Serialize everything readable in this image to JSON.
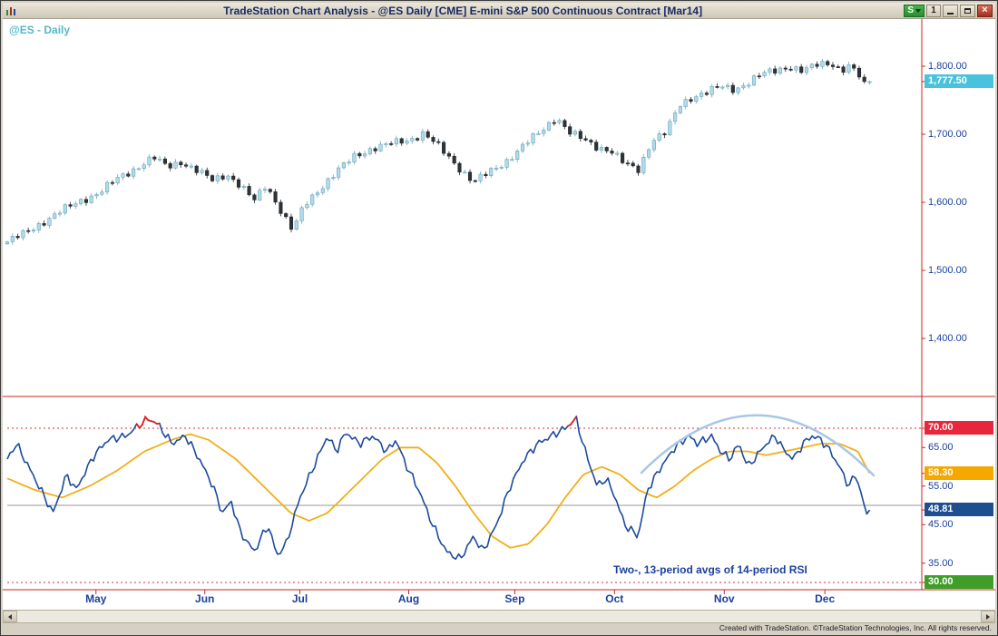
{
  "window": {
    "title": "TradeStation Chart Analysis - @ES Daily [CME] E-mini S&P 500 Continuous Contract [Mar14]",
    "toolbar_buttons": {
      "status": "S",
      "workspace": "1"
    }
  },
  "icons": {
    "app": "chart-icon",
    "status_dropdown": "chevron-down-icon",
    "minimize": "minimize-icon",
    "restore": "restore-icon",
    "close": "close-icon",
    "scroll_left": "arrow-left-icon",
    "scroll_right": "arrow-right-icon"
  },
  "chart": {
    "symbol_label": "@ES - Daily",
    "annotation": "Two-, 13-period avgs of 14-period RSI"
  },
  "statusbar": {
    "credit": "Created with TradeStation. ©TradeStation Technologies, Inc. All rights reserved."
  },
  "colors": {
    "candle_up": "#aedcec",
    "candle_up_stroke": "#5d98ac",
    "candle_down": "#2e3338",
    "candle_down_stroke": "#1e2226",
    "wick_up": "#7fb0c0",
    "wick_down": "#3a4046",
    "rsi_fast": "#1b4a9e",
    "rsi_slow": "#f2ae18",
    "rsi_overbought_segment": "#e02020",
    "axis_text": "#1a3f9e",
    "axis_line": "#cc2222",
    "last_price_badge_bg": "#49c2dd",
    "badge_70": "#e8273c",
    "badge_58": "#f5a800",
    "badge_48": "#1d4e8f",
    "badge_30": "#3f9e28",
    "midline": "#999999",
    "arc": "#a8c6e8",
    "annotation_text": "#1a3f9e",
    "symbol_label": "#58b6c8"
  },
  "price_axis": {
    "ticks": [
      {
        "text": "1,800.00",
        "value": 1800
      },
      {
        "text": "1,700.00",
        "value": 1700
      },
      {
        "text": "1,600.00",
        "value": 1600
      },
      {
        "text": "1,500.00",
        "value": 1500
      },
      {
        "text": "1,400.00",
        "value": 1400
      }
    ],
    "last_price": {
      "text": "1,777.50",
      "value": 1777.5
    }
  },
  "rsi_axis": {
    "ticks": [
      {
        "text": "70.00",
        "value": 70,
        "badge": "badge_70"
      },
      {
        "text": "65.00",
        "value": 65
      },
      {
        "text": "58.30",
        "value": 58.3,
        "badge": "badge_58"
      },
      {
        "text": "55.00",
        "value": 55
      },
      {
        "text": "48.81",
        "value": 48.81,
        "badge": "badge_48"
      },
      {
        "text": "45.00",
        "value": 45
      },
      {
        "text": "35.00",
        "value": 35
      },
      {
        "text": "30.00",
        "value": 30,
        "badge": "badge_30"
      }
    ]
  },
  "x_axis": {
    "months": [
      {
        "label": "May",
        "f": 0.097
      },
      {
        "label": "Jun",
        "f": 0.216
      },
      {
        "label": "Jul",
        "f": 0.32
      },
      {
        "label": "Aug",
        "f": 0.439
      },
      {
        "label": "Sep",
        "f": 0.555
      },
      {
        "label": "Oct",
        "f": 0.664
      },
      {
        "label": "Nov",
        "f": 0.784
      },
      {
        "label": "Dec",
        "f": 0.894
      }
    ]
  },
  "chart_data": {
    "type": "candlestick",
    "title": "@ES Daily [CME] E-mini S&P 500 Continuous Contract [Mar14]",
    "price_pane": {
      "ylim": [
        1315,
        1869
      ],
      "axis_ticks": [
        1800,
        1700,
        1600,
        1500,
        1400
      ],
      "last_close": 1777.5,
      "bar_count": 165,
      "close_anchors": [
        [
          0.0,
          1542
        ],
        [
          0.02,
          1555
        ],
        [
          0.04,
          1572
        ],
        [
          0.06,
          1588
        ],
        [
          0.08,
          1602
        ],
        [
          0.1,
          1614
        ],
        [
          0.12,
          1634
        ],
        [
          0.14,
          1650
        ],
        [
          0.16,
          1666
        ],
        [
          0.175,
          1652
        ],
        [
          0.19,
          1660
        ],
        [
          0.205,
          1648
        ],
        [
          0.225,
          1632
        ],
        [
          0.24,
          1642
        ],
        [
          0.255,
          1624
        ],
        [
          0.27,
          1602
        ],
        [
          0.283,
          1626
        ],
        [
          0.3,
          1586
        ],
        [
          0.312,
          1558
        ],
        [
          0.325,
          1596
        ],
        [
          0.34,
          1618
        ],
        [
          0.36,
          1645
        ],
        [
          0.38,
          1668
        ],
        [
          0.4,
          1680
        ],
        [
          0.42,
          1686
        ],
        [
          0.44,
          1692
        ],
        [
          0.455,
          1702
        ],
        [
          0.47,
          1684
        ],
        [
          0.49,
          1656
        ],
        [
          0.51,
          1630
        ],
        [
          0.525,
          1642
        ],
        [
          0.545,
          1660
        ],
        [
          0.565,
          1684
        ],
        [
          0.585,
          1706
        ],
        [
          0.6,
          1726
        ],
        [
          0.615,
          1702
        ],
        [
          0.63,
          1692
        ],
        [
          0.645,
          1682
        ],
        [
          0.66,
          1676
        ],
        [
          0.675,
          1656
        ],
        [
          0.69,
          1648
        ],
        [
          0.705,
          1692
        ],
        [
          0.72,
          1702
        ],
        [
          0.735,
          1742
        ],
        [
          0.75,
          1756
        ],
        [
          0.765,
          1762
        ],
        [
          0.78,
          1770
        ],
        [
          0.795,
          1766
        ],
        [
          0.81,
          1776
        ],
        [
          0.825,
          1788
        ],
        [
          0.84,
          1794
        ],
        [
          0.855,
          1800
        ],
        [
          0.87,
          1792
        ],
        [
          0.885,
          1802
        ],
        [
          0.9,
          1806
        ],
        [
          0.912,
          1794
        ],
        [
          0.922,
          1800
        ],
        [
          0.932,
          1784
        ],
        [
          0.94,
          1766
        ],
        [
          0.943,
          1777.5
        ]
      ]
    },
    "rsi_pane": {
      "indicator": "Two moving averages (2-period and 13-period) of 14-period RSI",
      "ylim": [
        28,
        77
      ],
      "axis_ticks": [
        70,
        65,
        58.3,
        55,
        48.81,
        45,
        35,
        30
      ],
      "levels": {
        "overbought": 70,
        "midline": 50,
        "oversold": 30
      },
      "lines": [
        {
          "name": "2-period avg of 14-period RSI",
          "color_key": "rsi_fast",
          "last_value": 48.81,
          "anchors": [
            [
              0.0,
              62
            ],
            [
              0.01,
              66
            ],
            [
              0.03,
              57
            ],
            [
              0.05,
              48
            ],
            [
              0.065,
              58
            ],
            [
              0.075,
              54
            ],
            [
              0.095,
              63
            ],
            [
              0.11,
              67
            ],
            [
              0.13,
              68
            ],
            [
              0.145,
              71
            ],
            [
              0.155,
              72.5
            ],
            [
              0.165,
              71
            ],
            [
              0.18,
              66
            ],
            [
              0.195,
              68
            ],
            [
              0.21,
              62
            ],
            [
              0.225,
              55
            ],
            [
              0.235,
              48
            ],
            [
              0.245,
              51
            ],
            [
              0.255,
              43
            ],
            [
              0.27,
              38
            ],
            [
              0.285,
              45
            ],
            [
              0.295,
              37
            ],
            [
              0.305,
              40
            ],
            [
              0.32,
              52
            ],
            [
              0.335,
              60
            ],
            [
              0.35,
              68
            ],
            [
              0.36,
              64
            ],
            [
              0.37,
              69
            ],
            [
              0.385,
              66
            ],
            [
              0.4,
              68
            ],
            [
              0.415,
              64
            ],
            [
              0.425,
              67
            ],
            [
              0.435,
              61
            ],
            [
              0.45,
              54
            ],
            [
              0.465,
              45
            ],
            [
              0.48,
              38
            ],
            [
              0.495,
              36
            ],
            [
              0.51,
              42
            ],
            [
              0.52,
              38
            ],
            [
              0.535,
              45
            ],
            [
              0.55,
              55
            ],
            [
              0.565,
              62
            ],
            [
              0.58,
              66
            ],
            [
              0.595,
              68
            ],
            [
              0.61,
              70
            ],
            [
              0.622,
              72.5
            ],
            [
              0.632,
              64
            ],
            [
              0.645,
              55
            ],
            [
              0.655,
              57
            ],
            [
              0.665,
              52
            ],
            [
              0.675,
              45
            ],
            [
              0.69,
              42
            ],
            [
              0.7,
              54
            ],
            [
              0.715,
              60
            ],
            [
              0.73,
              65
            ],
            [
              0.745,
              68
            ],
            [
              0.755,
              66
            ],
            [
              0.77,
              68
            ],
            [
              0.78,
              64
            ],
            [
              0.79,
              62
            ],
            [
              0.8,
              66
            ],
            [
              0.81,
              60
            ],
            [
              0.82,
              63
            ],
            [
              0.83,
              66
            ],
            [
              0.84,
              68
            ],
            [
              0.85,
              64
            ],
            [
              0.86,
              62
            ],
            [
              0.87,
              66
            ],
            [
              0.88,
              68
            ],
            [
              0.89,
              67
            ],
            [
              0.9,
              64
            ],
            [
              0.91,
              60
            ],
            [
              0.92,
              55
            ],
            [
              0.928,
              58
            ],
            [
              0.935,
              52
            ],
            [
              0.941,
              46
            ],
            [
              0.943,
              48.81
            ]
          ]
        },
        {
          "name": "13-period avg of 14-period RSI",
          "color_key": "rsi_slow",
          "last_value": 58.3,
          "anchors": [
            [
              0.0,
              57
            ],
            [
              0.03,
              54
            ],
            [
              0.06,
              52
            ],
            [
              0.09,
              55
            ],
            [
              0.12,
              59
            ],
            [
              0.15,
              64
            ],
            [
              0.18,
              67
            ],
            [
              0.2,
              68.5
            ],
            [
              0.22,
              67
            ],
            [
              0.25,
              62
            ],
            [
              0.28,
              55
            ],
            [
              0.31,
              48
            ],
            [
              0.33,
              46
            ],
            [
              0.35,
              48
            ],
            [
              0.38,
              55
            ],
            [
              0.41,
              62
            ],
            [
              0.43,
              65
            ],
            [
              0.45,
              65
            ],
            [
              0.47,
              61
            ],
            [
              0.49,
              55
            ],
            [
              0.51,
              48
            ],
            [
              0.53,
              42
            ],
            [
              0.55,
              39
            ],
            [
              0.57,
              40
            ],
            [
              0.59,
              45
            ],
            [
              0.61,
              52
            ],
            [
              0.63,
              58
            ],
            [
              0.65,
              60
            ],
            [
              0.67,
              58
            ],
            [
              0.69,
              54
            ],
            [
              0.71,
              52
            ],
            [
              0.73,
              55
            ],
            [
              0.75,
              59
            ],
            [
              0.77,
              62
            ],
            [
              0.79,
              64
            ],
            [
              0.81,
              64
            ],
            [
              0.83,
              63
            ],
            [
              0.85,
              64
            ],
            [
              0.87,
              65
            ],
            [
              0.89,
              66
            ],
            [
              0.91,
              66
            ],
            [
              0.93,
              64
            ],
            [
              0.943,
              58.3
            ]
          ]
        }
      ],
      "drawing": {
        "shape": "arc",
        "description": "light blue rounded-top arc over Nov-Dec RSI"
      }
    }
  }
}
